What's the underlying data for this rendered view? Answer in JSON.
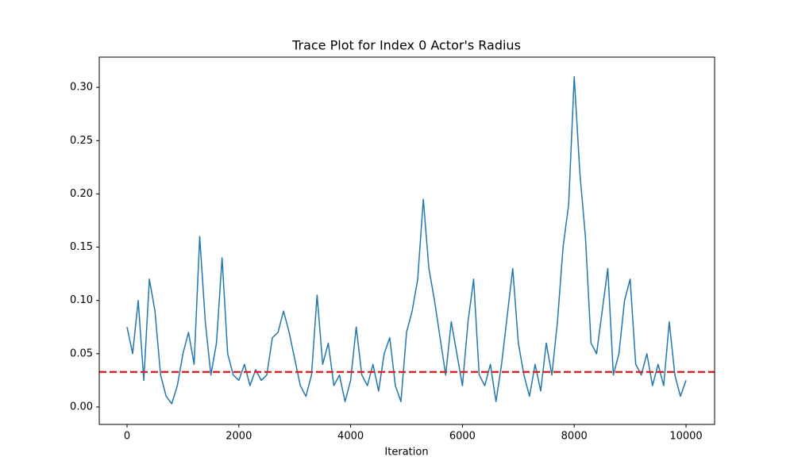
{
  "chart_data": {
    "type": "line",
    "title": "Trace Plot for Index 0 Actor's Radius",
    "xlabel": "Iteration",
    "x": [
      0,
      100,
      200,
      300,
      400,
      500,
      600,
      700,
      800,
      900,
      1000,
      1100,
      1200,
      1300,
      1400,
      1500,
      1600,
      1700,
      1800,
      1900,
      2000,
      2100,
      2200,
      2300,
      2400,
      2500,
      2600,
      2700,
      2800,
      2900,
      3000,
      3100,
      3200,
      3300,
      3400,
      3500,
      3600,
      3700,
      3800,
      3900,
      4000,
      4100,
      4200,
      4300,
      4400,
      4500,
      4600,
      4700,
      4800,
      4900,
      5000,
      5100,
      5200,
      5300,
      5400,
      5500,
      5600,
      5700,
      5800,
      5900,
      6000,
      6100,
      6200,
      6300,
      6400,
      6500,
      6600,
      6700,
      6800,
      6900,
      7000,
      7100,
      7200,
      7300,
      7400,
      7500,
      7600,
      7700,
      7800,
      7900,
      8000,
      8100,
      8200,
      8300,
      8400,
      8500,
      8600,
      8700,
      8800,
      8900,
      9000,
      9100,
      9200,
      9300,
      9400,
      9500,
      9600,
      9700,
      9800,
      9900,
      10000
    ],
    "values": [
      0.075,
      0.05,
      0.1,
      0.025,
      0.12,
      0.09,
      0.03,
      0.01,
      0.003,
      0.02,
      0.05,
      0.07,
      0.04,
      0.16,
      0.08,
      0.03,
      0.06,
      0.14,
      0.05,
      0.03,
      0.025,
      0.04,
      0.02,
      0.035,
      0.025,
      0.03,
      0.065,
      0.07,
      0.09,
      0.07,
      0.045,
      0.02,
      0.01,
      0.03,
      0.105,
      0.04,
      0.06,
      0.02,
      0.03,
      0.005,
      0.025,
      0.075,
      0.03,
      0.02,
      0.04,
      0.015,
      0.05,
      0.065,
      0.02,
      0.005,
      0.07,
      0.09,
      0.12,
      0.195,
      0.13,
      0.1,
      0.065,
      0.03,
      0.08,
      0.05,
      0.02,
      0.08,
      0.12,
      0.03,
      0.02,
      0.04,
      0.005,
      0.04,
      0.085,
      0.13,
      0.06,
      0.03,
      0.01,
      0.04,
      0.015,
      0.06,
      0.03,
      0.08,
      0.15,
      0.19,
      0.31,
      0.22,
      0.16,
      0.06,
      0.05,
      0.09,
      0.13,
      0.03,
      0.05,
      0.1,
      0.12,
      0.04,
      0.03,
      0.05,
      0.02,
      0.04,
      0.02,
      0.08,
      0.03,
      0.01,
      0.025
    ],
    "color": "#1f77b4",
    "hline": {
      "value": 0.0328,
      "color": "#d62728",
      "style": "dashed"
    },
    "xlim": [
      -497,
      10511
    ],
    "ylim": [
      -0.0164,
      0.3284
    ],
    "xticks": [
      0,
      2000,
      4000,
      6000,
      8000,
      10000
    ],
    "yticks": [
      {
        "value": 0,
        "label": "0.00"
      },
      {
        "value": 0.05,
        "label": "0.05"
      },
      {
        "value": 0.1,
        "label": "0.10"
      },
      {
        "value": 0.15,
        "label": "0.15"
      },
      {
        "value": 0.2,
        "label": "0.20"
      },
      {
        "value": 0.25,
        "label": "0.25"
      },
      {
        "value": 0.3,
        "label": "0.30"
      }
    ],
    "grid": false
  }
}
